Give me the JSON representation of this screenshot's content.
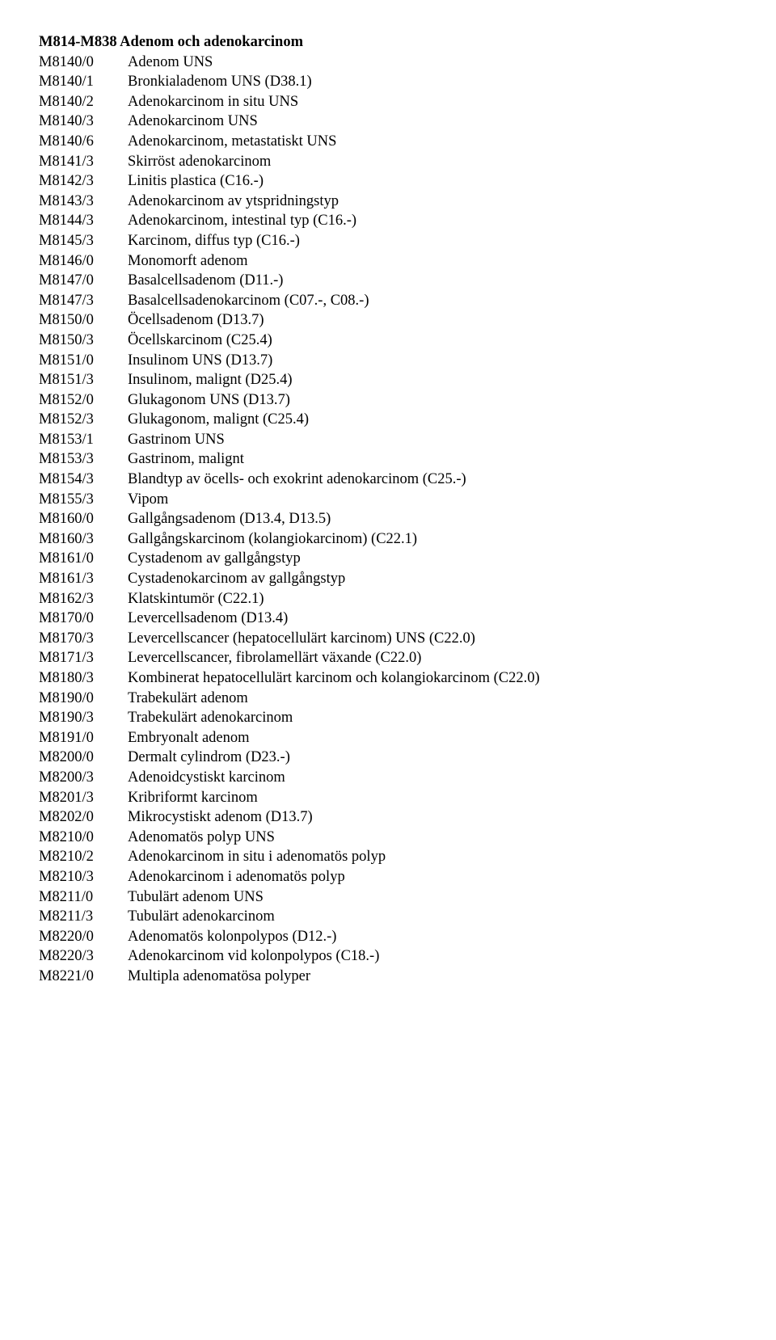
{
  "heading": "M814-M838 Adenom och adenokarcinom",
  "rows": [
    {
      "code": "M8140/0",
      "desc": "Adenom UNS"
    },
    {
      "code": "M8140/1",
      "desc": "Bronkialadenom UNS (D38.1)"
    },
    {
      "code": "M8140/2",
      "desc": "Adenokarcinom in situ UNS"
    },
    {
      "code": "M8140/3",
      "desc": "Adenokarcinom UNS"
    },
    {
      "code": "M8140/6",
      "desc": "Adenokarcinom, metastatiskt UNS"
    },
    {
      "code": "M8141/3",
      "desc": "Skirröst adenokarcinom"
    },
    {
      "code": "M8142/3",
      "desc": "Linitis plastica (C16.-)"
    },
    {
      "code": "M8143/3",
      "desc": "Adenokarcinom av ytspridningstyp"
    },
    {
      "code": "M8144/3",
      "desc": "Adenokarcinom, intestinal typ (C16.-)"
    },
    {
      "code": "M8145/3",
      "desc": "Karcinom, diffus typ (C16.-)"
    },
    {
      "code": "M8146/0",
      "desc": "Monomorft adenom"
    },
    {
      "code": "M8147/0",
      "desc": "Basalcellsadenom (D11.-)"
    },
    {
      "code": "M8147/3",
      "desc": "Basalcellsadenokarcinom (C07.-, C08.-)"
    },
    {
      "code": "M8150/0",
      "desc": "Öcellsadenom (D13.7)"
    },
    {
      "code": "M8150/3",
      "desc": "Öcellskarcinom (C25.4)"
    },
    {
      "code": "M8151/0",
      "desc": "Insulinom UNS (D13.7)"
    },
    {
      "code": "M8151/3",
      "desc": "Insulinom, malignt (D25.4)"
    },
    {
      "code": "M8152/0",
      "desc": "Glukagonom UNS (D13.7)"
    },
    {
      "code": "M8152/3",
      "desc": "Glukagonom, malignt (C25.4)"
    },
    {
      "code": "M8153/1",
      "desc": "Gastrinom UNS"
    },
    {
      "code": "M8153/3",
      "desc": "Gastrinom, malignt"
    },
    {
      "code": "M8154/3",
      "desc": "Blandtyp av öcells- och exokrint adenokarcinom (C25.-)"
    },
    {
      "code": "M8155/3",
      "desc": "Vipom"
    },
    {
      "code": "M8160/0",
      "desc": "Gallgångsadenom (D13.4, D13.5)"
    },
    {
      "code": "M8160/3",
      "desc": "Gallgångskarcinom (kolangiokarcinom) (C22.1)"
    },
    {
      "code": "M8161/0",
      "desc": "Cystadenom av gallgångstyp"
    },
    {
      "code": "M8161/3",
      "desc": "Cystadenokarcinom av gallgångstyp"
    },
    {
      "code": "M8162/3",
      "desc": "Klatskintumör (C22.1)"
    },
    {
      "code": "M8170/0",
      "desc": "Levercellsadenom (D13.4)"
    },
    {
      "code": "M8170/3",
      "desc": "Levercellscancer (hepatocellulärt karcinom) UNS (C22.0)"
    },
    {
      "code": "M8171/3",
      "desc": "Levercellscancer, fibrolamellärt växande (C22.0)"
    },
    {
      "code": "M8180/3",
      "desc": "Kombinerat hepatocellulärt karcinom och kolangiokarcinom (C22.0)"
    },
    {
      "code": "M8190/0",
      "desc": "Trabekulärt adenom"
    },
    {
      "code": "M8190/3",
      "desc": "Trabekulärt adenokarcinom"
    },
    {
      "code": "M8191/0",
      "desc": "Embryonalt adenom"
    },
    {
      "code": "M8200/0",
      "desc": "Dermalt cylindrom (D23.-)"
    },
    {
      "code": "M8200/3",
      "desc": "Adenoidcystiskt karcinom"
    },
    {
      "code": "M8201/3",
      "desc": "Kribriformt karcinom"
    },
    {
      "code": "M8202/0",
      "desc": "Mikrocystiskt adenom (D13.7)"
    },
    {
      "code": "M8210/0",
      "desc": "Adenomatös polyp UNS"
    },
    {
      "code": "M8210/2",
      "desc": "Adenokarcinom in situ i adenomatös polyp"
    },
    {
      "code": "M8210/3",
      "desc": "Adenokarcinom i adenomatös polyp"
    },
    {
      "code": "M8211/0",
      "desc": "Tubulärt adenom UNS"
    },
    {
      "code": "M8211/3",
      "desc": "Tubulärt adenokarcinom"
    },
    {
      "code": "M8220/0",
      "desc": "Adenomatös kolonpolypos (D12.-)"
    },
    {
      "code": "M8220/3",
      "desc": "Adenokarcinom vid kolonpolypos (C18.-)"
    },
    {
      "code": "M8221/0",
      "desc": "Multipla adenomatösa polyper"
    }
  ]
}
